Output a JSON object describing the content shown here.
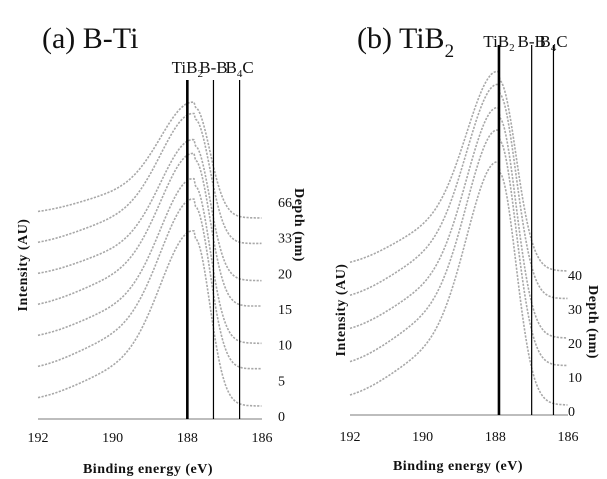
{
  "chart_data": [
    {
      "type": "line",
      "title": "(a) B-Ti",
      "title_main": "(a) B-Ti",
      "xlabel": "Binding energy (eV)",
      "ylabel": "Intensity (AU)",
      "depth_axis_label": "Depth (nm)",
      "x_reversed": true,
      "xlim": [
        192,
        186
      ],
      "x_ticks": [
        "192",
        "190",
        "188",
        "186"
      ],
      "reference_lines": [
        {
          "label": "TiB",
          "sub": "2",
          "x": 188.0,
          "style": "thick"
        },
        {
          "label": "B-B",
          "sub": "",
          "x": 187.3,
          "style": "thin"
        },
        {
          "label": "B",
          "sub": "4",
          "suffix": "C",
          "x": 186.6,
          "style": "thin"
        }
      ],
      "depth_labels": [
        "66",
        "33",
        "20",
        "15",
        "10",
        "5",
        "0"
      ],
      "peak_position": 187.8,
      "series": [
        {
          "depth": 66,
          "peak_height": 1.0
        },
        {
          "depth": 33,
          "peak_height": 0.9
        },
        {
          "depth": 20,
          "peak_height": 0.8
        },
        {
          "depth": 15,
          "peak_height": 0.75
        },
        {
          "depth": 10,
          "peak_height": 0.7
        },
        {
          "depth": 5,
          "peak_height": 0.65
        },
        {
          "depth": 0,
          "peak_height": 0.6
        }
      ],
      "grid": false
    },
    {
      "type": "line",
      "title": "(b) TiB2",
      "title_main": "(b) TiB",
      "title_sub": "2",
      "xlabel": "Binding energy (eV)",
      "ylabel": "Intensity (AU)",
      "depth_axis_label": "Depth (nm)",
      "x_reversed": true,
      "xlim": [
        192,
        186
      ],
      "x_ticks": [
        "192",
        "190",
        "188",
        "186"
      ],
      "reference_lines": [
        {
          "label": "TiB",
          "sub": "2",
          "x": 187.9,
          "style": "thick"
        },
        {
          "label": "B-B",
          "sub": "",
          "x": 187.0,
          "style": "thin"
        },
        {
          "label": "B",
          "sub": "4",
          "suffix": "C",
          "x": 186.4,
          "style": "thin"
        }
      ],
      "depth_labels": [
        "40",
        "30",
        "20",
        "10",
        "0"
      ],
      "peak_position": 187.9,
      "series": [
        {
          "depth": 40,
          "peak_height": 1.0
        },
        {
          "depth": 30,
          "peak_height": 0.93
        },
        {
          "depth": 20,
          "peak_height": 0.87
        },
        {
          "depth": 10,
          "peak_height": 0.8
        },
        {
          "depth": 0,
          "peak_height": 0.74
        }
      ],
      "grid": false
    }
  ]
}
